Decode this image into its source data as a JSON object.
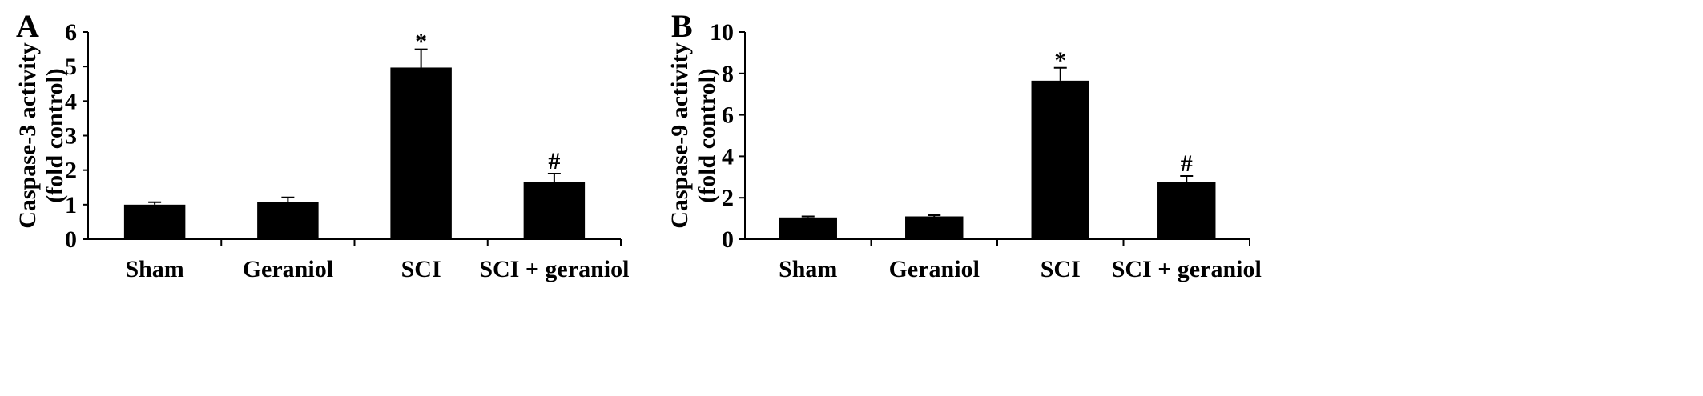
{
  "chart_data": [
    {
      "panel": "A",
      "type": "bar",
      "categories": [
        "Sham",
        "Geraniol",
        "SCI",
        "SCI + geraniol"
      ],
      "values": [
        1.0,
        1.08,
        4.97,
        1.65
      ],
      "errors": [
        0.07,
        0.13,
        0.53,
        0.25
      ],
      "significance": [
        "",
        "",
        "*",
        "#"
      ],
      "ylabel_line1": "Caspase-3 activity",
      "ylabel_line2": "(fold control)",
      "ylim": [
        0,
        6
      ],
      "yticks": [
        0,
        1,
        2,
        3,
        4,
        5,
        6
      ],
      "colors": {
        "bar": "#000000"
      }
    },
    {
      "panel": "B",
      "type": "bar",
      "categories": [
        "Sham",
        "Geraniol",
        "SCI",
        "SCI + geraniol"
      ],
      "values": [
        1.05,
        1.1,
        7.65,
        2.75
      ],
      "errors": [
        0.05,
        0.06,
        0.62,
        0.3
      ],
      "significance": [
        "",
        "",
        "*",
        "#"
      ],
      "ylabel_line1": "Caspase-9 activity",
      "ylabel_line2": "(fold control)",
      "ylim": [
        0,
        10
      ],
      "yticks": [
        0,
        2,
        4,
        6,
        8,
        10
      ],
      "colors": {
        "bar": "#000000"
      }
    }
  ]
}
